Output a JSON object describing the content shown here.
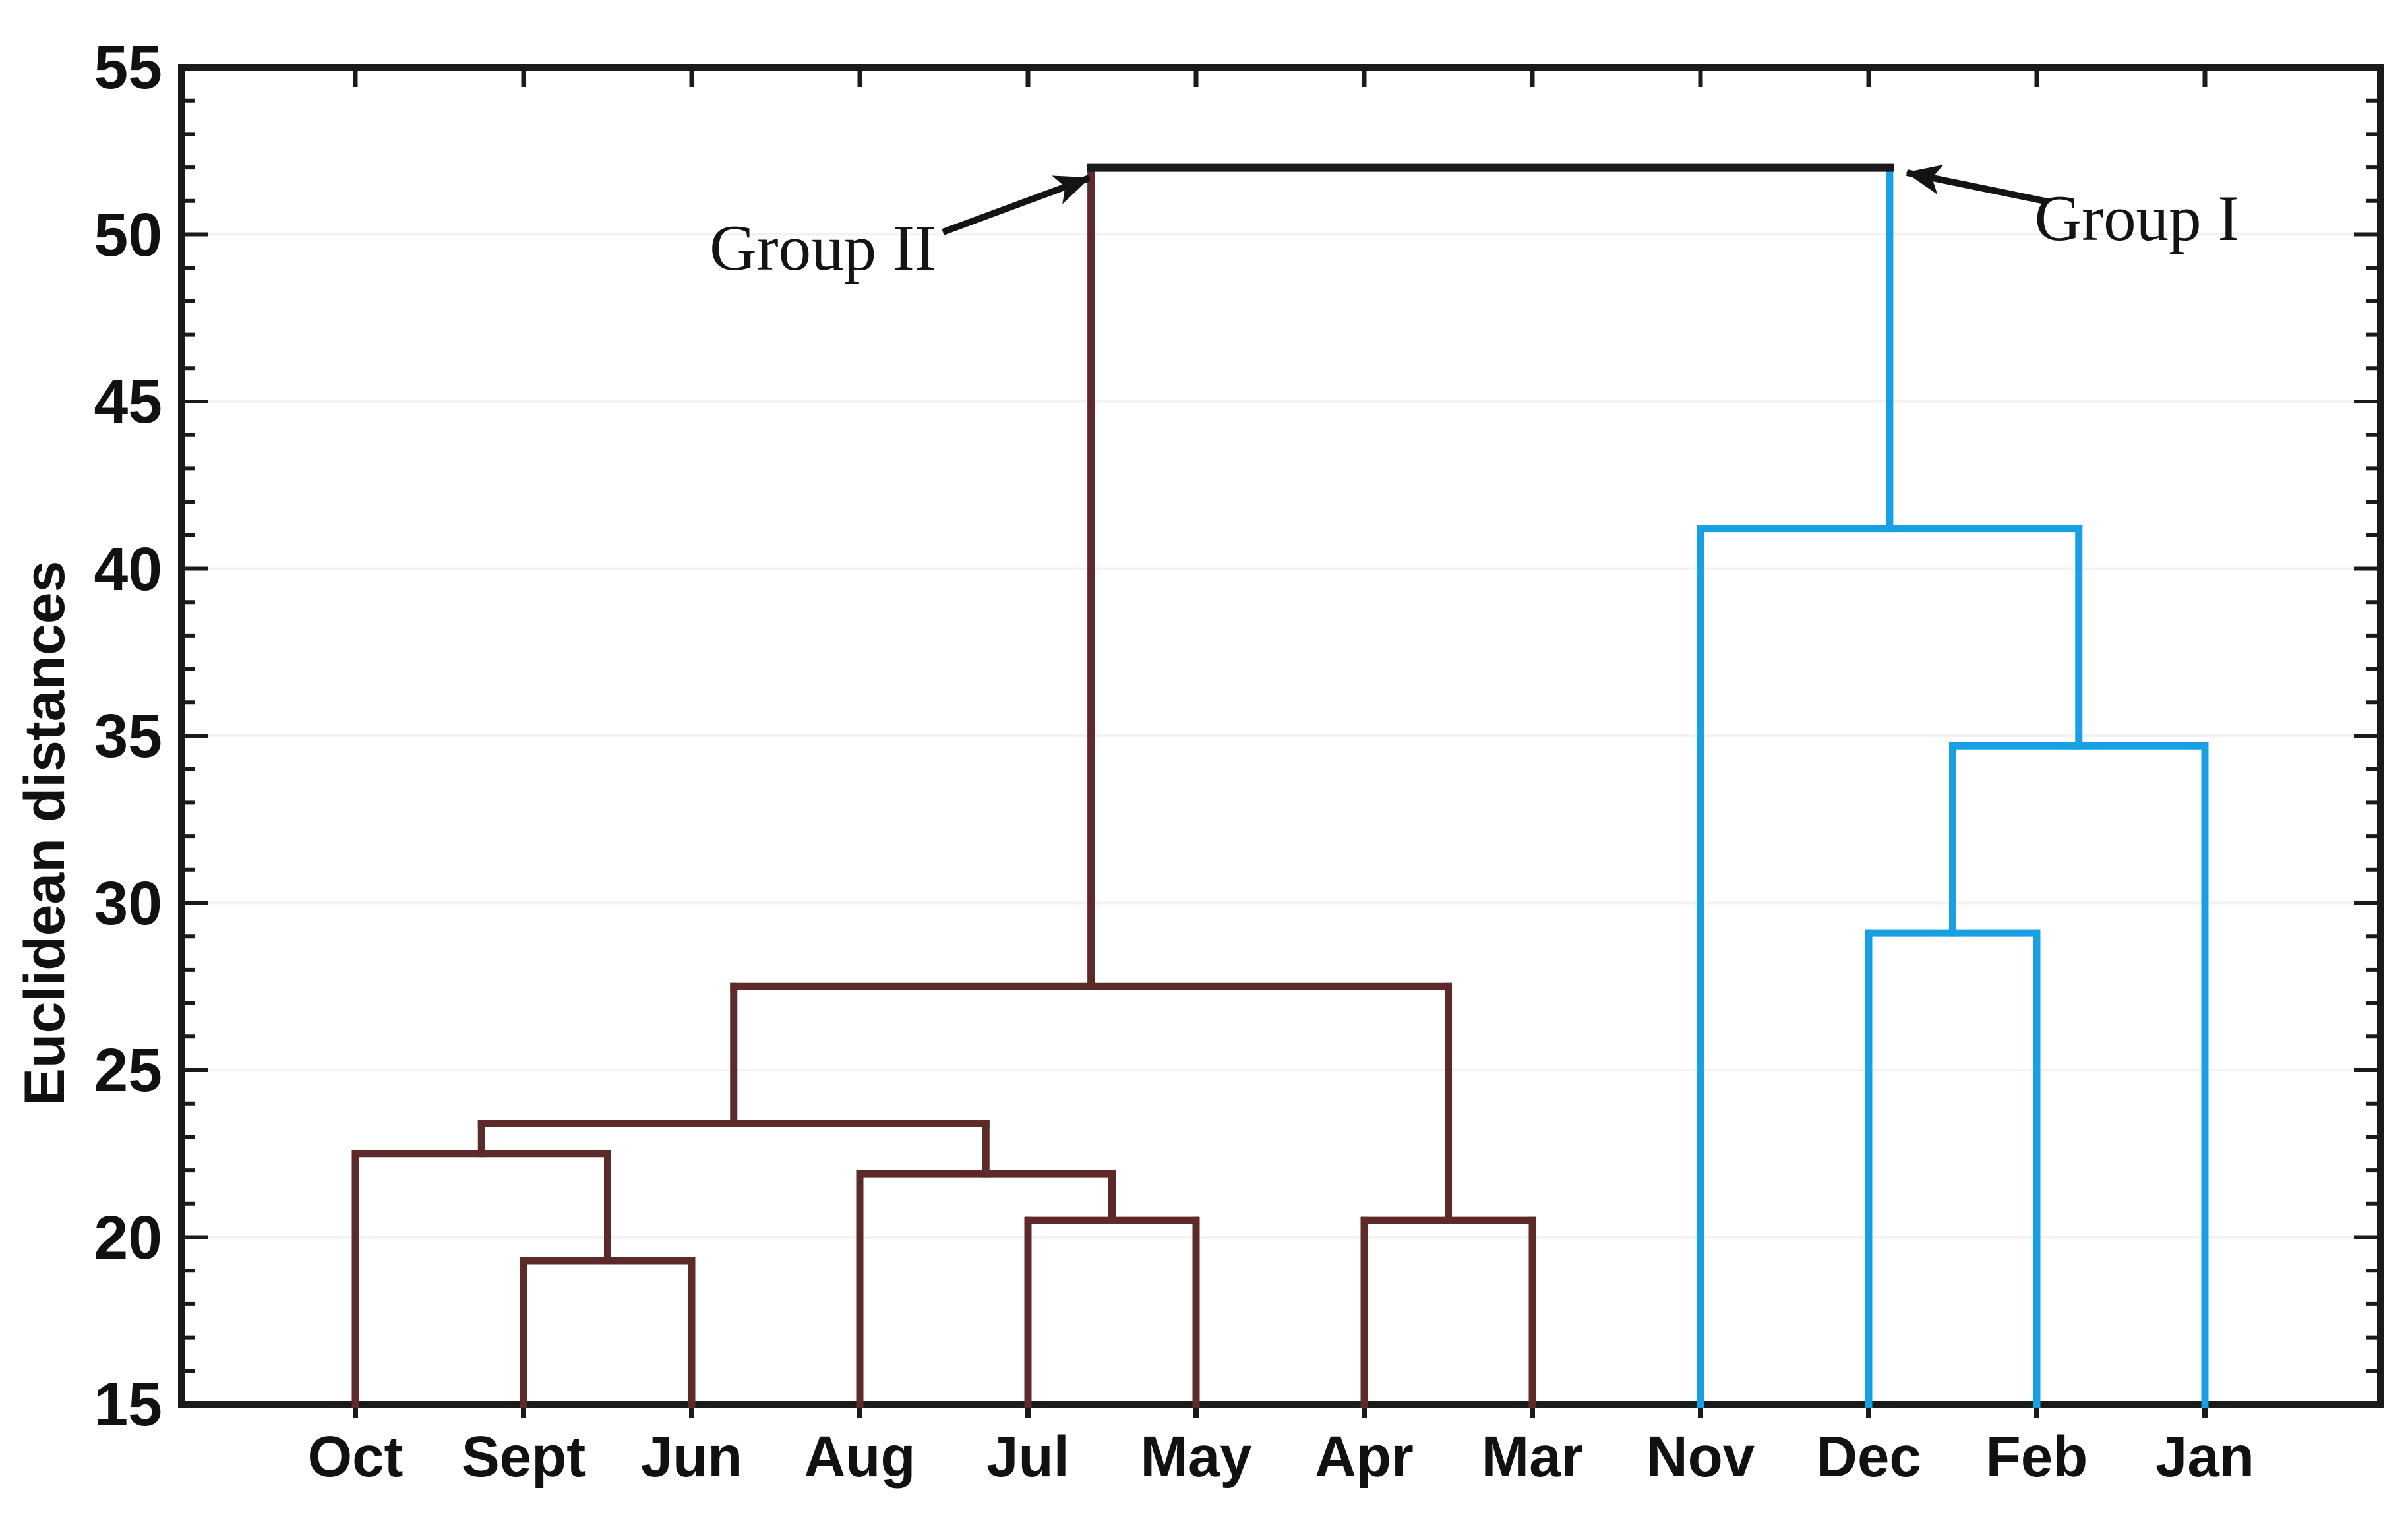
{
  "chart_data": {
    "type": "dendrogram",
    "title": "",
    "ylabel": "Euclidean distances",
    "xlabel": "",
    "ylim": [
      15,
      55
    ],
    "y_major_tick_step": 5,
    "y_minor_tick_step": 1,
    "y_tick_labels": [
      "15",
      "20",
      "25",
      "30",
      "35",
      "40",
      "45",
      "50",
      "55"
    ],
    "grid": "horizontal-major-faint",
    "legend_position": "none",
    "leaves": [
      "Oct",
      "Sept",
      "Jun",
      "Aug",
      "Jul",
      "May",
      "Apr",
      "Mar",
      "Nov",
      "Dec",
      "Feb",
      "Jan"
    ],
    "leaf_base_value": 15,
    "linkage": [
      {
        "id": "M1",
        "children": [
          "Sept",
          "Jun"
        ],
        "height": 19.3,
        "group": "II"
      },
      {
        "id": "M2",
        "children": [
          "Oct",
          "M1"
        ],
        "height": 22.5,
        "group": "II"
      },
      {
        "id": "M3",
        "children": [
          "Jul",
          "May"
        ],
        "height": 20.5,
        "group": "II"
      },
      {
        "id": "M4",
        "children": [
          "Aug",
          "M3"
        ],
        "height": 21.9,
        "group": "II"
      },
      {
        "id": "M5",
        "children": [
          "M2",
          "M4"
        ],
        "height": 23.4,
        "group": "II"
      },
      {
        "id": "M6",
        "children": [
          "Apr",
          "Mar"
        ],
        "height": 20.5,
        "group": "II"
      },
      {
        "id": "M7",
        "children": [
          "M5",
          "M6"
        ],
        "height": 27.5,
        "group": "II"
      },
      {
        "id": "B1",
        "children": [
          "Dec",
          "Feb"
        ],
        "height": 29.1,
        "group": "I"
      },
      {
        "id": "B2",
        "children": [
          "B1",
          "Jan"
        ],
        "height": 34.7,
        "group": "I"
      },
      {
        "id": "B3",
        "children": [
          "Nov",
          "B2"
        ],
        "height": 41.2,
        "group": "I"
      },
      {
        "id": "ROOT",
        "children": [
          "M7",
          "B3"
        ],
        "height": 52.0,
        "group": "root"
      }
    ],
    "groups": {
      "II": {
        "label": "Group II",
        "color": "#5e2929",
        "members": [
          "Oct",
          "Sept",
          "Jun",
          "Aug",
          "Jul",
          "May",
          "Apr",
          "Mar"
        ]
      },
      "I": {
        "label": "Group I",
        "color": "#18a0e4",
        "members": [
          "Nov",
          "Dec",
          "Feb",
          "Jan"
        ]
      }
    },
    "root_link_color": "#1a1a1a",
    "axis_color": "#1a1a1a",
    "grid_color": "#f2f2f2",
    "background_color": "#ffffff",
    "annotations": [
      {
        "id": "group-ii",
        "text": "Group II",
        "arrow_points_to": "left cluster root"
      },
      {
        "id": "group-i",
        "text": "Group I",
        "arrow_points_to": "right cluster root"
      }
    ]
  }
}
